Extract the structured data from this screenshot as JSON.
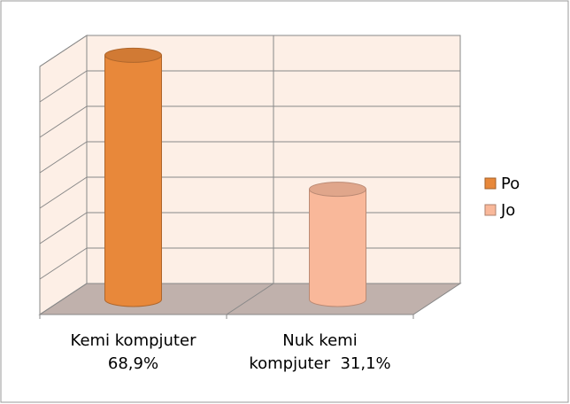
{
  "chart_data": {
    "type": "bar3d",
    "categories": [
      "Kemi kompjuter 68,9%",
      "Nuk kemi kompjuter  31,1%"
    ],
    "series": [
      {
        "name": "Po",
        "color": "#e8883a",
        "values": [
          68.9,
          null
        ]
      },
      {
        "name": "Jo",
        "color": "#f9b89a",
        "values": [
          null,
          31.1
        ]
      }
    ],
    "ylim": [
      0,
      70
    ],
    "yticks": [
      0,
      10,
      20,
      30,
      40,
      50,
      60,
      70
    ],
    "grid": true,
    "legend": "right"
  }
}
